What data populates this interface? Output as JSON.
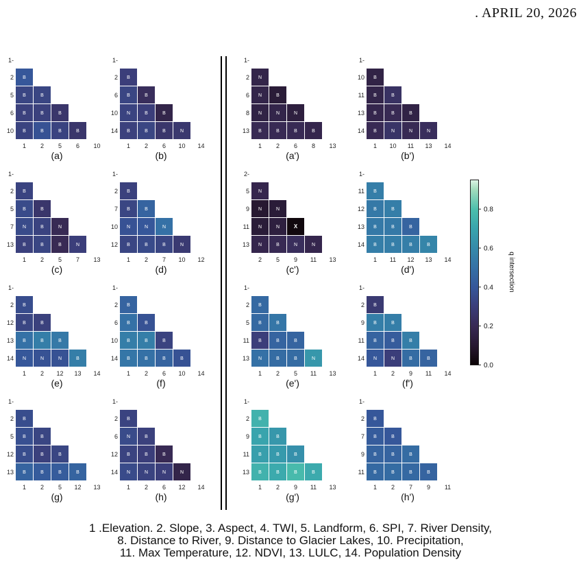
{
  "header": ". APRIL 20, 2026",
  "caption": [
    "1 .Elevation. 2. Slope, 3. Aspect, 4. TWI, 5. Landform, 6. SPI, 7. River Density,",
    "8. Distance to River, 9. Distance to Glacier Lakes, 10. Precipitation,",
    "11. Max Temperature, 12. NDVI, 13. LULC, 14. Population Density"
  ],
  "colorbar": {
    "label": "q intersection",
    "ticks": [
      "0.0",
      "0.2",
      "0.4",
      "0.6",
      "0.8"
    ],
    "tick_values": [
      0,
      0.2,
      0.4,
      0.6,
      0.8
    ],
    "range": [
      0,
      0.95
    ],
    "colormap": "mako"
  },
  "chart_data": [
    {
      "type": "heatmap",
      "panel": "(a)",
      "y_labels": [
        "1",
        "2",
        "5",
        "6",
        "10"
      ],
      "x_labels": [
        "1",
        "2",
        "5",
        "6",
        "10"
      ],
      "cells": [
        [
          "B",
          0.4
        ],
        [
          "B",
          0.33
        ],
        [
          "B",
          0.33
        ],
        [
          "B",
          0.31
        ],
        [
          "B",
          0.31
        ],
        [
          "B",
          0.26
        ],
        [
          "B",
          0.32
        ],
        [
          "B",
          0.38
        ],
        [
          "B",
          0.32
        ],
        [
          "B",
          0.26
        ]
      ]
    },
    {
      "type": "heatmap",
      "panel": "(b)",
      "y_labels": [
        "1",
        "2",
        "6",
        "10",
        "14"
      ],
      "x_labels": [
        "1",
        "2",
        "6",
        "10",
        "14"
      ],
      "cells": [
        [
          "B",
          0.3
        ],
        [
          "B",
          0.33
        ],
        [
          "B",
          0.22
        ],
        [
          "N",
          0.32
        ],
        [
          "B",
          0.3
        ],
        [
          "B",
          0.17
        ],
        [
          "B",
          0.31
        ],
        [
          "B",
          0.33
        ],
        [
          "B",
          0.26
        ],
        [
          "N",
          0.27
        ]
      ]
    },
    {
      "type": "heatmap",
      "panel": "(c)",
      "y_labels": [
        "1",
        "2",
        "5",
        "7",
        "13"
      ],
      "x_labels": [
        "1",
        "2",
        "5",
        "7",
        "13"
      ],
      "cells": [
        [
          "B",
          0.32
        ],
        [
          "B",
          0.35
        ],
        [
          "B",
          0.26
        ],
        [
          "N",
          0.35
        ],
        [
          "B",
          0.32
        ],
        [
          "N",
          0.2
        ],
        [
          "B",
          0.31
        ],
        [
          "B",
          0.33
        ],
        [
          "B",
          0.2
        ],
        [
          "N",
          0.3
        ]
      ]
    },
    {
      "type": "heatmap",
      "panel": "(d)",
      "y_labels": [
        "1",
        "2",
        "7",
        "10",
        "12"
      ],
      "x_labels": [
        "1",
        "2",
        "7",
        "10",
        "12"
      ],
      "cells": [
        [
          "B",
          0.31
        ],
        [
          "B",
          0.33
        ],
        [
          "B",
          0.45
        ],
        [
          "N",
          0.38
        ],
        [
          "N",
          0.4
        ],
        [
          "N",
          0.5
        ],
        [
          "B",
          0.33
        ],
        [
          "B",
          0.35
        ],
        [
          "B",
          0.33
        ],
        [
          "N",
          0.28
        ]
      ]
    },
    {
      "type": "heatmap",
      "panel": "(e)",
      "y_labels": [
        "1",
        "2",
        "12",
        "13",
        "14"
      ],
      "x_labels": [
        "1",
        "2",
        "12",
        "13",
        "14"
      ],
      "cells": [
        [
          "B",
          0.36
        ],
        [
          "B",
          0.33
        ],
        [
          "B",
          0.31
        ],
        [
          "B",
          0.5
        ],
        [
          "B",
          0.55
        ],
        [
          "B",
          0.53
        ],
        [
          "N",
          0.4
        ],
        [
          "N",
          0.38
        ],
        [
          "N",
          0.38
        ],
        [
          "B",
          0.55
        ]
      ]
    },
    {
      "type": "heatmap",
      "panel": "(f)",
      "y_labels": [
        "1",
        "2",
        "6",
        "10",
        "14"
      ],
      "x_labels": [
        "1",
        "2",
        "6",
        "10",
        "14"
      ],
      "cells": [
        [
          "B",
          0.45
        ],
        [
          "B",
          0.5
        ],
        [
          "B",
          0.38
        ],
        [
          "B",
          0.55
        ],
        [
          "B",
          0.55
        ],
        [
          "B",
          0.32
        ],
        [
          "B",
          0.52
        ],
        [
          "B",
          0.5
        ],
        [
          "B",
          0.45
        ],
        [
          "B",
          0.38
        ]
      ]
    },
    {
      "type": "heatmap",
      "panel": "(g)",
      "y_labels": [
        "1",
        "2",
        "5",
        "12",
        "13"
      ],
      "x_labels": [
        "1",
        "2",
        "5",
        "12",
        "13"
      ],
      "cells": [
        [
          "B",
          0.36
        ],
        [
          "B",
          0.37
        ],
        [
          "B",
          0.33
        ],
        [
          "B",
          0.36
        ],
        [
          "B",
          0.31
        ],
        [
          "B",
          0.33
        ],
        [
          "B",
          0.45
        ],
        [
          "B",
          0.42
        ],
        [
          "B",
          0.42
        ],
        [
          "B",
          0.45
        ]
      ]
    },
    {
      "type": "heatmap",
      "panel": "(h)",
      "y_labels": [
        "1",
        "2",
        "6",
        "12",
        "14"
      ],
      "x_labels": [
        "1",
        "2",
        "6",
        "12",
        "14"
      ],
      "cells": [
        [
          "B",
          0.32
        ],
        [
          "N",
          0.35
        ],
        [
          "B",
          0.31
        ],
        [
          "B",
          0.32
        ],
        [
          "B",
          0.3
        ],
        [
          "B",
          0.2
        ],
        [
          "N",
          0.35
        ],
        [
          "N",
          0.32
        ],
        [
          "N",
          0.3
        ],
        [
          "N",
          0.17
        ]
      ]
    },
    {
      "type": "heatmap",
      "panel": "(a')",
      "y_labels": [
        "1",
        "2",
        "6",
        "8",
        "13"
      ],
      "x_labels": [
        "1",
        "2",
        "6",
        "8",
        "13"
      ],
      "cells": [
        [
          "N",
          0.17
        ],
        [
          "N",
          0.17
        ],
        [
          "B",
          0.12
        ],
        [
          "N",
          0.16
        ],
        [
          "N",
          0.17
        ],
        [
          "N",
          0.14
        ],
        [
          "B",
          0.2
        ],
        [
          "B",
          0.2
        ],
        [
          "B",
          0.2
        ],
        [
          "B",
          0.18
        ]
      ]
    },
    {
      "type": "heatmap",
      "panel": "(b')",
      "y_labels": [
        "1",
        "10",
        "11",
        "13",
        "14"
      ],
      "x_labels": [
        "1",
        "10",
        "11",
        "13",
        "14"
      ],
      "cells": [
        [
          "B",
          0.16
        ],
        [
          "B",
          0.17
        ],
        [
          "B",
          0.24
        ],
        [
          "B",
          0.18
        ],
        [
          "B",
          0.2
        ],
        [
          "B",
          0.16
        ],
        [
          "B",
          0.2
        ],
        [
          "N",
          0.25
        ],
        [
          "N",
          0.2
        ],
        [
          "N",
          0.22
        ]
      ]
    },
    {
      "type": "heatmap",
      "panel": "(c')",
      "y_labels": [
        "2",
        "5",
        "9",
        "11",
        "13"
      ],
      "x_labels": [
        "2",
        "5",
        "9",
        "11",
        "13"
      ],
      "cells": [
        [
          "N",
          0.18
        ],
        [
          "N",
          0.1
        ],
        [
          "N",
          0.12
        ],
        [
          "N",
          0.12
        ],
        [
          "N",
          0.14
        ],
        [
          "X",
          0.02
        ],
        [
          "N",
          0.18
        ],
        [
          "B",
          0.2
        ],
        [
          "N",
          0.22
        ],
        [
          "N",
          0.18
        ]
      ]
    },
    {
      "type": "heatmap",
      "panel": "(d')",
      "y_labels": [
        "1",
        "11",
        "12",
        "13",
        "14"
      ],
      "x_labels": [
        "1",
        "11",
        "12",
        "13",
        "14"
      ],
      "cells": [
        [
          "B",
          0.55
        ],
        [
          "B",
          0.53
        ],
        [
          "B",
          0.55
        ],
        [
          "B",
          0.53
        ],
        [
          "B",
          0.53
        ],
        [
          "B",
          0.45
        ],
        [
          "B",
          0.55
        ],
        [
          "B",
          0.55
        ],
        [
          "B",
          0.55
        ],
        [
          "B",
          0.58
        ]
      ]
    },
    {
      "type": "heatmap",
      "panel": "(e')",
      "y_labels": [
        "1",
        "2",
        "5",
        "11",
        "13"
      ],
      "x_labels": [
        "1",
        "2",
        "5",
        "11",
        "13"
      ],
      "cells": [
        [
          "B",
          0.47
        ],
        [
          "B",
          0.47
        ],
        [
          "B",
          0.52
        ],
        [
          "B",
          0.3
        ],
        [
          "B",
          0.45
        ],
        [
          "B",
          0.45
        ],
        [
          "N",
          0.5
        ],
        [
          "B",
          0.48
        ],
        [
          "B",
          0.48
        ],
        [
          "N",
          0.65
        ]
      ]
    },
    {
      "type": "heatmap",
      "panel": "(f')",
      "y_labels": [
        "1",
        "2",
        "9",
        "11",
        "14"
      ],
      "x_labels": [
        "1",
        "2",
        "9",
        "11",
        "14"
      ],
      "cells": [
        [
          "B",
          0.28
        ],
        [
          "B",
          0.55
        ],
        [
          "B",
          0.55
        ],
        [
          "B",
          0.45
        ],
        [
          "B",
          0.42
        ],
        [
          "B",
          0.55
        ],
        [
          "N",
          0.4
        ],
        [
          "N",
          0.3
        ],
        [
          "B",
          0.48
        ],
        [
          "B",
          0.45
        ]
      ]
    },
    {
      "type": "heatmap",
      "panel": "(g')",
      "y_labels": [
        "1",
        "2",
        "9",
        "11",
        "13"
      ],
      "x_labels": [
        "1",
        "2",
        "9",
        "11",
        "13"
      ],
      "cells": [
        [
          "B",
          0.75
        ],
        [
          "B",
          0.7
        ],
        [
          "B",
          0.65
        ],
        [
          "B",
          0.68
        ],
        [
          "B",
          0.66
        ],
        [
          "B",
          0.62
        ],
        [
          "B",
          0.75
        ],
        [
          "B",
          0.72
        ],
        [
          "B",
          0.78
        ],
        [
          "B",
          0.72
        ]
      ]
    },
    {
      "type": "heatmap",
      "panel": "(h')",
      "y_labels": [
        "1",
        "2",
        "7",
        "9",
        "11"
      ],
      "x_labels": [
        "1",
        "2",
        "7",
        "9",
        "11"
      ],
      "cells": [
        [
          "B",
          0.4
        ],
        [
          "B",
          0.42
        ],
        [
          "B",
          0.4
        ],
        [
          "B",
          0.45
        ],
        [
          "B",
          0.45
        ],
        [
          "B",
          0.48
        ],
        [
          "B",
          0.47
        ],
        [
          "B",
          0.48
        ],
        [
          "B",
          0.47
        ],
        [
          "B",
          0.45
        ]
      ]
    }
  ]
}
